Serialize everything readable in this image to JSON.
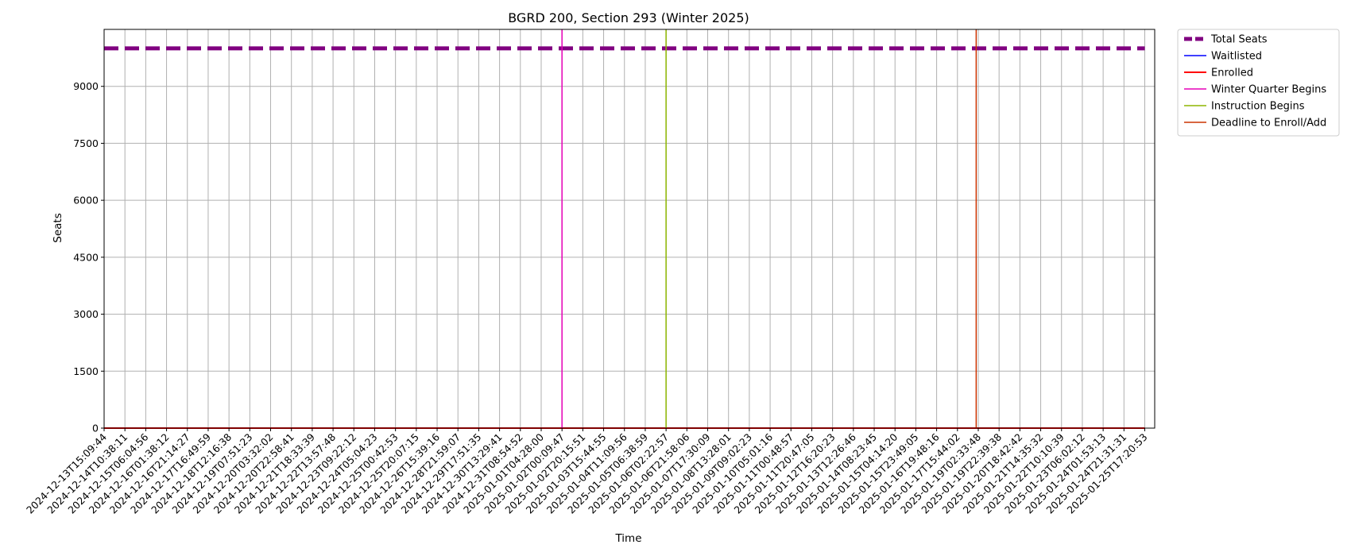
{
  "chart_data": {
    "type": "line",
    "title": "BGRD 200, Section 293 (Winter 2025)",
    "xlabel": "Time",
    "ylabel": "Seats",
    "ylim": [
      0,
      10500
    ],
    "yticks": [
      0,
      1500,
      3000,
      4500,
      6000,
      7500,
      9000
    ],
    "grid": true,
    "legend_position": "outside-top-right",
    "x": [
      "2024-12-13T15:09:44",
      "2024-12-14T10:38:11",
      "2024-12-15T06:04:56",
      "2024-12-16T01:38:12",
      "2024-12-16T21:14:27",
      "2024-12-17T16:49:59",
      "2024-12-18T12:16:38",
      "2024-12-19T07:51:23",
      "2024-12-20T03:32:02",
      "2024-12-20T22:58:41",
      "2024-12-21T18:33:39",
      "2024-12-22T13:57:48",
      "2024-12-23T09:22:12",
      "2024-12-24T05:04:23",
      "2024-12-25T00:42:53",
      "2024-12-25T20:07:15",
      "2024-12-26T15:39:16",
      "2024-12-28T21:59:07",
      "2024-12-29T17:51:35",
      "2024-12-30T13:29:41",
      "2024-12-31T08:54:52",
      "2025-01-01T04:28:00",
      "2025-01-02T00:09:47",
      "2025-01-02T20:15:51",
      "2025-01-03T15:44:55",
      "2025-01-04T11:09:56",
      "2025-01-05T06:38:59",
      "2025-01-06T02:22:57",
      "2025-01-06T21:58:06",
      "2025-01-07T17:30:09",
      "2025-01-08T13:28:01",
      "2025-01-09T09:02:23",
      "2025-01-10T05:01:16",
      "2025-01-11T00:48:57",
      "2025-01-11T20:47:05",
      "2025-01-12T16:20:23",
      "2025-01-13T12:26:46",
      "2025-01-14T08:23:45",
      "2025-01-15T04:14:20",
      "2025-01-15T23:49:05",
      "2025-01-16T19:48:16",
      "2025-01-17T15:44:02",
      "2025-01-19T02:33:48",
      "2025-01-19T22:39:38",
      "2025-01-20T18:42:42",
      "2025-01-21T14:35:32",
      "2025-01-22T10:10:39",
      "2025-01-23T06:02:12",
      "2025-01-24T01:53:13",
      "2025-01-24T21:31:31",
      "2025-01-25T17:20:53"
    ],
    "series": [
      {
        "name": "Total Seats",
        "color": "#800080",
        "style": "dashed",
        "constant": 10000
      },
      {
        "name": "Waitlisted",
        "color": "#0000ff",
        "style": "solid",
        "constant": 0
      },
      {
        "name": "Enrolled",
        "color": "#ff0000",
        "style": "solid",
        "constant": 0
      }
    ],
    "vertical_markers": [
      {
        "name": "Winter Quarter Begins",
        "color": "#e600b8",
        "at_index": 22
      },
      {
        "name": "Instruction Begins",
        "color": "#8db600",
        "at_index": 27
      },
      {
        "name": "Deadline to Enroll/Add",
        "color": "#cc3300",
        "at_index": 41.9
      }
    ]
  }
}
